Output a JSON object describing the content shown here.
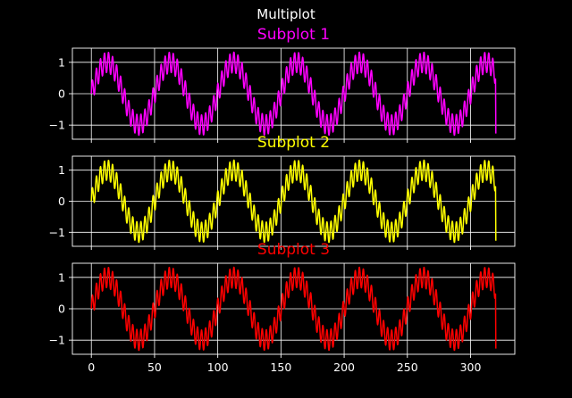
{
  "figure": {
    "title": "Multiplot",
    "background": "#000000",
    "foreground": "#ffffff",
    "grid_color": "#ffffff"
  },
  "chart_data": [
    {
      "type": "line",
      "title": "Subplot 1",
      "title_color": "#ff00ff",
      "line_color": "#ff00ff",
      "xlim": [
        -15,
        335
      ],
      "ylim": [
        -1.45,
        1.45
      ],
      "xticks": [
        0,
        50,
        100,
        150,
        200,
        250,
        300
      ],
      "yticks": [
        -1,
        0,
        1
      ],
      "show_xticklabels": false,
      "grid": true,
      "x_start": 0,
      "x_end": 320,
      "signal": {
        "main_period": 50,
        "main_amplitude": 1,
        "ripple_period": 3.2,
        "ripple_amplitude": 0.33,
        "end_value": -1.27
      }
    },
    {
      "type": "line",
      "title": "Subplot 2",
      "title_color": "#ffff00",
      "line_color": "#ffff00",
      "xlim": [
        -15,
        335
      ],
      "ylim": [
        -1.45,
        1.45
      ],
      "xticks": [
        0,
        50,
        100,
        150,
        200,
        250,
        300
      ],
      "yticks": [
        -1,
        0,
        1
      ],
      "show_xticklabels": false,
      "grid": true,
      "x_start": 0,
      "x_end": 320,
      "signal": {
        "main_period": 50,
        "main_amplitude": 1,
        "ripple_period": 3.2,
        "ripple_amplitude": 0.33,
        "end_value": -1.27
      }
    },
    {
      "type": "line",
      "title": "Subplot 3",
      "title_color": "#ff0000",
      "line_color": "#ff0000",
      "xlim": [
        -15,
        335
      ],
      "ylim": [
        -1.45,
        1.45
      ],
      "xticks": [
        0,
        50,
        100,
        150,
        200,
        250,
        300
      ],
      "yticks": [
        -1,
        0,
        1
      ],
      "show_xticklabels": true,
      "grid": true,
      "x_start": 0,
      "x_end": 320,
      "signal": {
        "main_period": 50,
        "main_amplitude": 1,
        "ripple_period": 3.2,
        "ripple_amplitude": 0.33,
        "end_value": -1.27
      }
    }
  ]
}
